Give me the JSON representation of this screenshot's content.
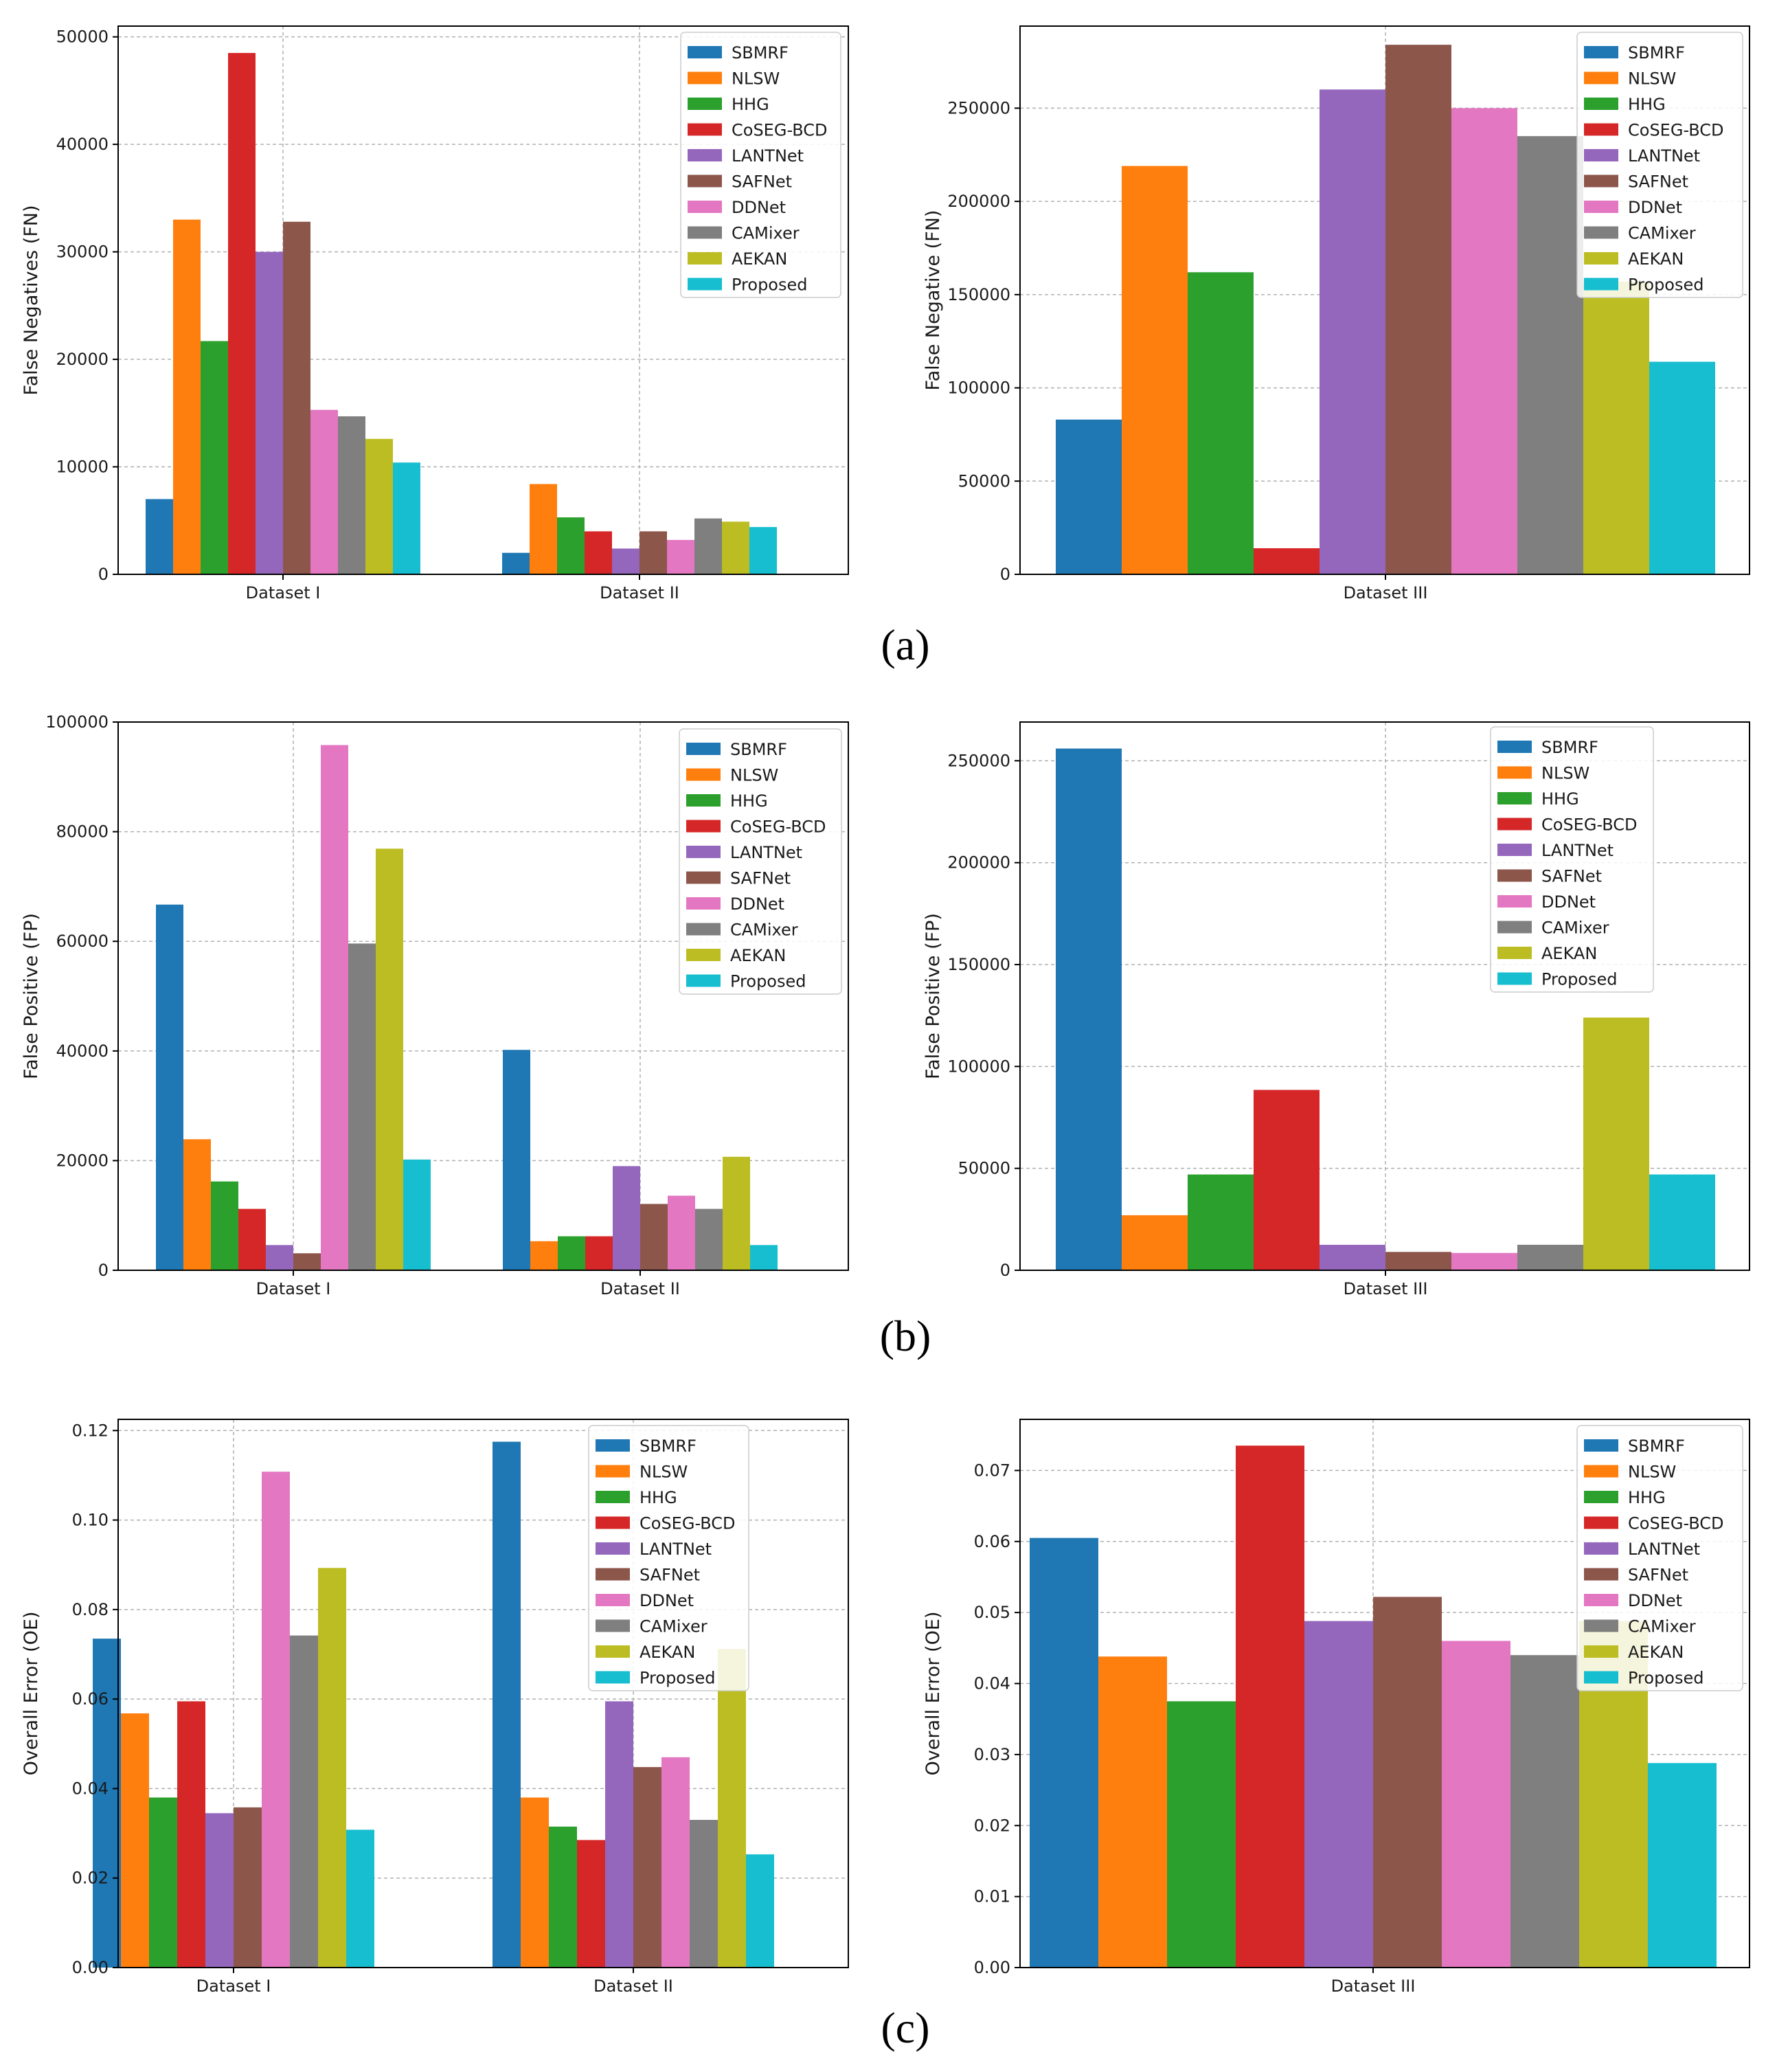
{
  "palette": [
    "#1f77b4",
    "#ff7f0e",
    "#2ca02c",
    "#d62728",
    "#9467bd",
    "#8c564b",
    "#e377c2",
    "#7f7f7f",
    "#bcbd22",
    "#17becf"
  ],
  "methods": [
    "SBMRF",
    "NLSW",
    "HHG",
    "CoSEG-BCD",
    "LANTNet",
    "SAFNet",
    "DDNet",
    "CAMixer",
    "AEKAN",
    "Proposed"
  ],
  "captions": [
    "(a)",
    "(b)",
    "(c)"
  ],
  "chart_data": [
    {
      "type": "bar",
      "categories": [
        "Dataset I",
        "Dataset II"
      ],
      "ylabel": "False Negatives (FN)",
      "ylim": [
        0,
        51000
      ],
      "yticks": [
        0,
        10000,
        20000,
        30000,
        40000,
        50000
      ],
      "ytick_labels": [
        "0",
        "10000",
        "20000",
        "30000",
        "40000",
        "50000"
      ],
      "grid": true,
      "legend_position": "top-right",
      "series": [
        {
          "name": "SBMRF",
          "values": [
            7000,
            2000
          ]
        },
        {
          "name": "NLSW",
          "values": [
            33000,
            8400
          ]
        },
        {
          "name": "HHG",
          "values": [
            21700,
            5300
          ]
        },
        {
          "name": "CoSEG-BCD",
          "values": [
            48500,
            4000
          ]
        },
        {
          "name": "LANTNet",
          "values": [
            30000,
            2400
          ]
        },
        {
          "name": "SAFNet",
          "values": [
            32800,
            4000
          ]
        },
        {
          "name": "DDNet",
          "values": [
            15300,
            3200
          ]
        },
        {
          "name": "CAMixer",
          "values": [
            14700,
            5200
          ]
        },
        {
          "name": "AEKAN",
          "values": [
            12600,
            4900
          ]
        },
        {
          "name": "Proposed",
          "values": [
            10400,
            4400
          ]
        }
      ]
    },
    {
      "type": "bar",
      "categories": [
        "Dataset III"
      ],
      "ylabel": "False Negative (FN)",
      "ylim": [
        0,
        294000
      ],
      "yticks": [
        0,
        50000,
        100000,
        150000,
        200000,
        250000
      ],
      "ytick_labels": [
        "0",
        "50000",
        "100000",
        "150000",
        "200000",
        "250000"
      ],
      "grid": true,
      "legend_position": "top-right",
      "series": [
        {
          "name": "SBMRF",
          "values": [
            83000
          ]
        },
        {
          "name": "NLSW",
          "values": [
            219000
          ]
        },
        {
          "name": "HHG",
          "values": [
            162000
          ]
        },
        {
          "name": "CoSEG-BCD",
          "values": [
            14000
          ]
        },
        {
          "name": "LANTNet",
          "values": [
            260000
          ]
        },
        {
          "name": "SAFNet",
          "values": [
            284000
          ]
        },
        {
          "name": "DDNet",
          "values": [
            250000
          ]
        },
        {
          "name": "CAMixer",
          "values": [
            235000
          ]
        },
        {
          "name": "AEKAN",
          "values": [
            157000
          ]
        },
        {
          "name": "Proposed",
          "values": [
            114000
          ]
        }
      ]
    },
    {
      "type": "bar",
      "categories": [
        "Dataset I",
        "Dataset II"
      ],
      "ylabel": "False Positive (FP)",
      "ylim": [
        0,
        100000
      ],
      "yticks": [
        0,
        20000,
        40000,
        60000,
        80000,
        100000
      ],
      "ytick_labels": [
        "0",
        "20000",
        "40000",
        "60000",
        "80000",
        "100000"
      ],
      "grid": true,
      "legend_position": "top-right",
      "series": [
        {
          "name": "SBMRF",
          "values": [
            66700,
            40200
          ]
        },
        {
          "name": "NLSW",
          "values": [
            23900,
            5300
          ]
        },
        {
          "name": "HHG",
          "values": [
            16200,
            6200
          ]
        },
        {
          "name": "CoSEG-BCD",
          "values": [
            11200,
            6200
          ]
        },
        {
          "name": "LANTNet",
          "values": [
            4600,
            19000
          ]
        },
        {
          "name": "SAFNet",
          "values": [
            3100,
            12100
          ]
        },
        {
          "name": "DDNet",
          "values": [
            95800,
            13600
          ]
        },
        {
          "name": "CAMixer",
          "values": [
            59600,
            11200
          ]
        },
        {
          "name": "AEKAN",
          "values": [
            76900,
            20700
          ]
        },
        {
          "name": "Proposed",
          "values": [
            20200,
            4600
          ]
        }
      ]
    },
    {
      "type": "bar",
      "categories": [
        "Dataset III"
      ],
      "ylabel": "False Positive (FP)",
      "ylim": [
        0,
        269000
      ],
      "yticks": [
        0,
        50000,
        100000,
        150000,
        200000,
        250000
      ],
      "ytick_labels": [
        "0",
        "50000",
        "100000",
        "150000",
        "200000",
        "250000"
      ],
      "grid": true,
      "legend_position": "top-right",
      "series": [
        {
          "name": "SBMRF",
          "values": [
            256000
          ]
        },
        {
          "name": "NLSW",
          "values": [
            27000
          ]
        },
        {
          "name": "HHG",
          "values": [
            47000
          ]
        },
        {
          "name": "CoSEG-BCD",
          "values": [
            88500
          ]
        },
        {
          "name": "LANTNet",
          "values": [
            12500
          ]
        },
        {
          "name": "SAFNet",
          "values": [
            9000
          ]
        },
        {
          "name": "DDNet",
          "values": [
            8500
          ]
        },
        {
          "name": "CAMixer",
          "values": [
            12500
          ]
        },
        {
          "name": "AEKAN",
          "values": [
            124000
          ]
        },
        {
          "name": "Proposed",
          "values": [
            47000
          ]
        }
      ]
    },
    {
      "type": "bar",
      "categories": [
        "Dataset I",
        "Dataset II"
      ],
      "ylabel": "Overall Error (OE)",
      "ylim": [
        0,
        0.1225
      ],
      "yticks": [
        0,
        0.02,
        0.04,
        0.06,
        0.08,
        0.1,
        0.12
      ],
      "ytick_labels": [
        "0.00",
        "0.02",
        "0.04",
        "0.06",
        "0.08",
        "0.10",
        "0.12"
      ],
      "grid": true,
      "legend_position": "top-right",
      "series": [
        {
          "name": "SBMRF",
          "values": [
            0.0735,
            0.1175
          ]
        },
        {
          "name": "NLSW",
          "values": [
            0.0568,
            0.038
          ]
        },
        {
          "name": "HHG",
          "values": [
            0.038,
            0.0315
          ]
        },
        {
          "name": "CoSEG-BCD",
          "values": [
            0.0595,
            0.0285
          ]
        },
        {
          "name": "LANTNet",
          "values": [
            0.0345,
            0.0595
          ]
        },
        {
          "name": "SAFNet",
          "values": [
            0.0358,
            0.0448
          ]
        },
        {
          "name": "DDNet",
          "values": [
            0.1108,
            0.047
          ]
        },
        {
          "name": "CAMixer",
          "values": [
            0.0742,
            0.033
          ]
        },
        {
          "name": "AEKAN",
          "values": [
            0.0893,
            0.0712
          ]
        },
        {
          "name": "Proposed",
          "values": [
            0.0308,
            0.0253
          ]
        }
      ]
    },
    {
      "type": "bar",
      "categories": [
        "Dataset III"
      ],
      "ylabel": "Overall Error (OE)",
      "ylim": [
        0,
        0.0772
      ],
      "yticks": [
        0,
        0.01,
        0.02,
        0.03,
        0.04,
        0.05,
        0.06,
        0.07
      ],
      "ytick_labels": [
        "0.00",
        "0.01",
        "0.02",
        "0.03",
        "0.04",
        "0.05",
        "0.06",
        "0.07"
      ],
      "grid": true,
      "legend_position": "top-right",
      "series": [
        {
          "name": "SBMRF",
          "values": [
            0.0605
          ]
        },
        {
          "name": "NLSW",
          "values": [
            0.0438
          ]
        },
        {
          "name": "HHG",
          "values": [
            0.0375
          ]
        },
        {
          "name": "CoSEG-BCD",
          "values": [
            0.0735
          ]
        },
        {
          "name": "LANTNet",
          "values": [
            0.0488
          ]
        },
        {
          "name": "SAFNet",
          "values": [
            0.0522
          ]
        },
        {
          "name": "DDNet",
          "values": [
            0.046
          ]
        },
        {
          "name": "CAMixer",
          "values": [
            0.044
          ]
        },
        {
          "name": "AEKAN",
          "values": [
            0.0488
          ]
        },
        {
          "name": "Proposed",
          "values": [
            0.0288
          ]
        }
      ]
    }
  ]
}
